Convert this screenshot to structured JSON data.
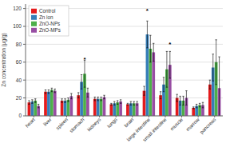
{
  "chart_data": {
    "type": "bar",
    "y_label": "Zn concentration (μg/g)",
    "categories": [
      "heart",
      "liver",
      "spleen",
      "stomach",
      "kidneys",
      "lungs",
      "brain",
      "large intestine",
      "small intestine",
      "muscle",
      "marrow",
      "pancreas"
    ],
    "series": [
      {
        "name": "Control",
        "color": "#e41a1c",
        "values": [
          15,
          27,
          17,
          23,
          19,
          13,
          13,
          28,
          23,
          20,
          9,
          35
        ],
        "errors": [
          2,
          2,
          2,
          3,
          2,
          1,
          1,
          5,
          4,
          4,
          1,
          5
        ]
      },
      {
        "name": "Zn ion",
        "color": "#377eb8",
        "values": [
          16,
          27,
          17,
          38,
          19,
          14,
          14,
          91,
          35,
          17,
          11,
          54
        ],
        "errors": [
          2,
          2,
          2,
          8,
          2,
          2,
          2,
          15,
          8,
          5,
          2,
          15
        ]
      },
      {
        "name": "ZnO-NPs",
        "color": "#4daf4a",
        "values": [
          17,
          29,
          18,
          47,
          19,
          15,
          14,
          75,
          52,
          17,
          12,
          60
        ],
        "errors": [
          2,
          2,
          2,
          15,
          2,
          2,
          2,
          15,
          20,
          5,
          2,
          25
        ]
      },
      {
        "name": "ZnO-MPs",
        "color": "#984ea3",
        "values": [
          11,
          28,
          22,
          26,
          21,
          16,
          14,
          71,
          57,
          20,
          12,
          31
        ],
        "errors": [
          2,
          2,
          3,
          5,
          2,
          2,
          2,
          10,
          15,
          8,
          3,
          35
        ]
      }
    ],
    "annotations": [
      {
        "text": "*",
        "category": "stomach",
        "series": "ZnO-NPs",
        "y": 65
      },
      {
        "text": "*",
        "category": "large intestine",
        "series": "Zn ion",
        "y": 120
      },
      {
        "text": "*",
        "category": "small intestine",
        "series": "ZnO-MPs",
        "y": 82
      }
    ],
    "ylim": [
      0,
      125
    ],
    "yticks": [
      0,
      20,
      40,
      60,
      80,
      100,
      120
    ],
    "grid": true,
    "legend": "upper left"
  }
}
